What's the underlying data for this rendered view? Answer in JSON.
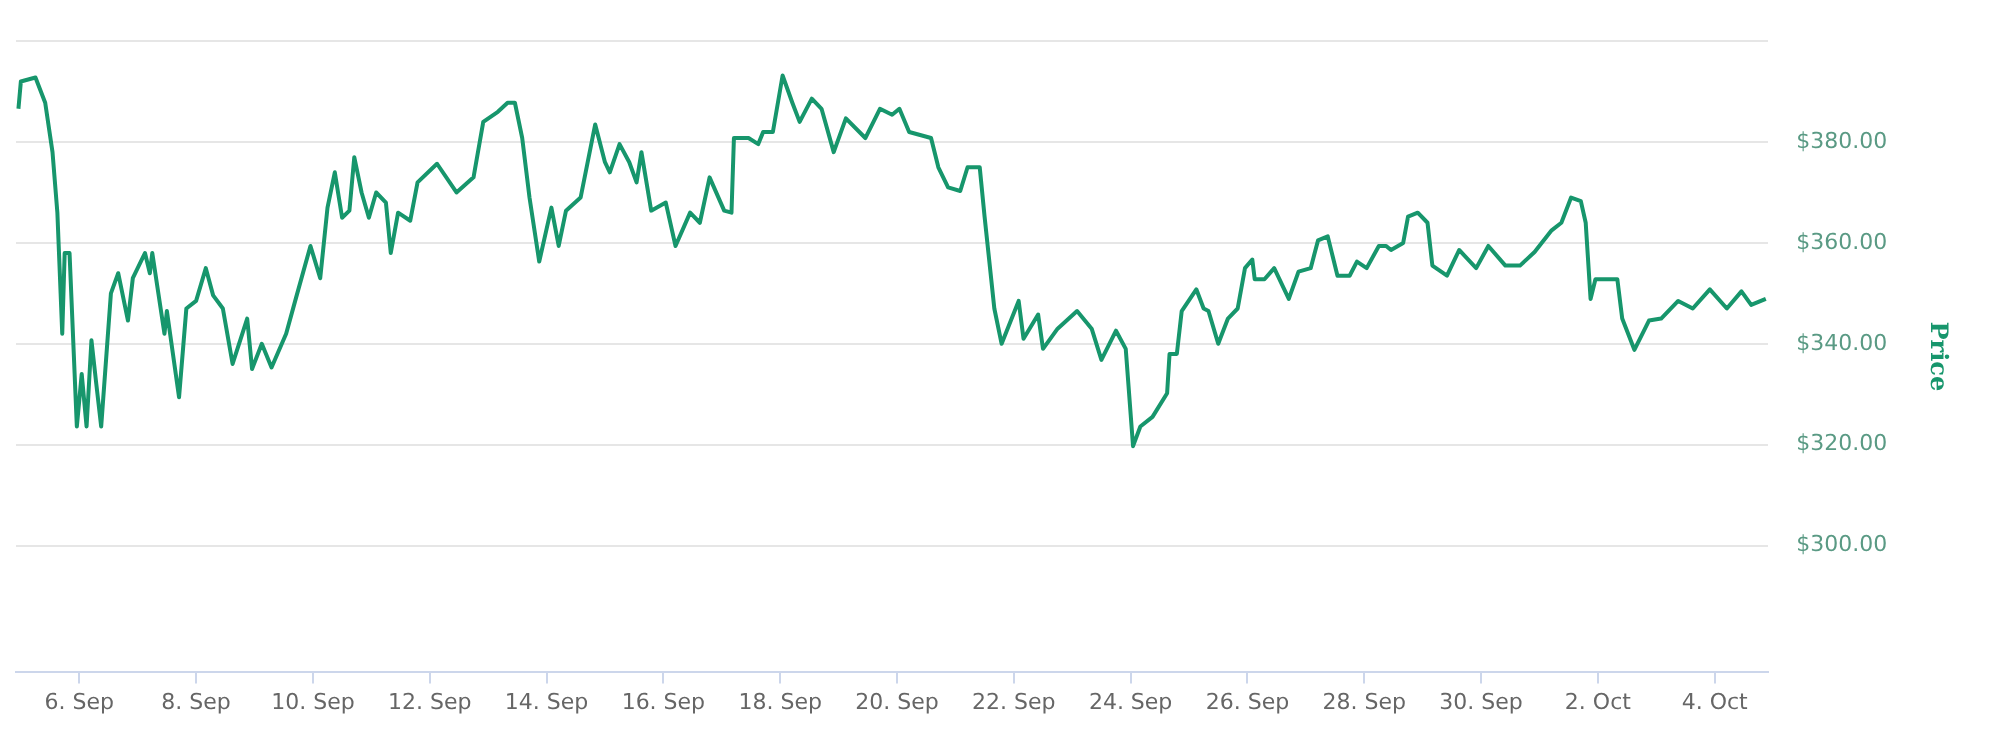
{
  "chart_data": {
    "type": "line",
    "ylabel": "Price",
    "grid": "y",
    "marker": "none",
    "line_style": "solid",
    "xlim": [
      "--09-04T22:00",
      "--10-04T22:00"
    ],
    "xticks": [
      {
        "value": "--09-06",
        "label": "6. Sep"
      },
      {
        "value": "--09-08",
        "label": "8. Sep"
      },
      {
        "value": "--09-10",
        "label": "10. Sep"
      },
      {
        "value": "--09-12",
        "label": "12. Sep"
      },
      {
        "value": "--09-14",
        "label": "14. Sep"
      },
      {
        "value": "--09-16",
        "label": "16. Sep"
      },
      {
        "value": "--09-18",
        "label": "18. Sep"
      },
      {
        "value": "--09-20",
        "label": "20. Sep"
      },
      {
        "value": "--09-22",
        "label": "22. Sep"
      },
      {
        "value": "--09-24",
        "label": "24. Sep"
      },
      {
        "value": "--09-26",
        "label": "26. Sep"
      },
      {
        "value": "--09-28",
        "label": "28. Sep"
      },
      {
        "value": "--09-30",
        "label": "30. Sep"
      },
      {
        "value": "--10-02",
        "label": "2. Oct"
      },
      {
        "value": "--10-04",
        "label": "4. Oct"
      }
    ],
    "ylim": [
      275,
      400
    ],
    "yticks": [
      {
        "value": 300,
        "label": "$300.00"
      },
      {
        "value": 320,
        "label": "$320.00"
      },
      {
        "value": 340,
        "label": "$340.00"
      },
      {
        "value": 360,
        "label": "$360.00"
      },
      {
        "value": 380,
        "label": "$380.00"
      },
      {
        "value": 400,
        "label": null
      }
    ],
    "x": [
      "--09-04T23:00",
      "--09-05T00:00",
      "--09-05T06:00",
      "--09-05T10:00",
      "--09-05T13:00",
      "--09-05T15:00",
      "--09-05T17:00",
      "--09-05T18:00",
      "--09-05T20:00",
      "--09-05T23:00",
      "--09-06T01:00",
      "--09-06T03:00",
      "--09-06T05:00",
      "--09-06T07:00",
      "--09-06T09:00",
      "--09-06T13:00",
      "--09-06T16:00",
      "--09-06T20:00",
      "--09-06T22:00",
      "--09-07T03:00",
      "--09-07T05:00",
      "--09-07T06:00",
      "--09-07T11:00",
      "--09-07T12:00",
      "--09-07T17:00",
      "--09-07T20:00",
      "--09-08T00:00",
      "--09-08T04:00",
      "--09-08T07:00",
      "--09-08T11:00",
      "--09-08T15:00",
      "--09-08T21:00",
      "--09-08T23:00",
      "--09-09T03:00",
      "--09-09T07:00",
      "--09-09T13:00",
      "--09-09T17:00",
      "--09-09T23:00",
      "--09-10T03:00",
      "--09-10T06:00",
      "--09-10T09:00",
      "--09-10T12:00",
      "--09-10T15:00",
      "--09-10T17:00",
      "--09-10T20:00",
      "--09-10T23:00",
      "--09-11T02:00",
      "--09-11T06:00",
      "--09-11T08:00",
      "--09-11T11:00",
      "--09-11T16:00",
      "--09-11T19:00",
      "--09-12T03:00",
      "--09-12T11:00",
      "--09-12T18:00",
      "--09-12T22:00",
      "--09-13T04:00",
      "--09-13T08:00",
      "--09-13T11:00",
      "--09-13T14:00",
      "--09-13T17:00",
      "--09-13T21:00",
      "--09-14T02:00",
      "--09-14T05:00",
      "--09-14T08:00",
      "--09-14T14:00",
      "--09-14T20:00",
      "--09-15T00:00",
      "--09-15T02:00",
      "--09-15T06:00",
      "--09-15T10:00",
      "--09-15T13:00",
      "--09-15T15:00",
      "--09-15T19:00",
      "--09-16T01:00",
      "--09-16T05:00",
      "--09-16T11:00",
      "--09-16T15:00",
      "--09-16T19:00",
      "--09-17T01:00",
      "--09-17T04:00",
      "--09-17T05:00",
      "--09-17T11:00",
      "--09-17T15:00",
      "--09-17T17:00",
      "--09-17T21:00",
      "--09-18T01:00",
      "--09-18T05:00",
      "--09-18T08:00",
      "--09-18T13:00",
      "--09-18T17:00",
      "--09-18T22:00",
      "--09-19T03:00",
      "--09-19T11:00",
      "--09-19T17:00",
      "--09-19T22:00",
      "--09-20T01:00",
      "--09-20T05:00",
      "--09-20T14:00",
      "--09-20T17:00",
      "--09-20T21:00",
      "--09-21T02:00",
      "--09-21T05:00",
      "--09-21T10:00",
      "--09-21T12:00",
      "--09-21T16:00",
      "--09-21T19:00",
      "--09-22T02:00",
      "--09-22T04:00",
      "--09-22T10:00",
      "--09-22T12:00",
      "--09-22T18:00",
      "--09-23T02:00",
      "--09-23T08:00",
      "--09-23T12:00",
      "--09-23T18:00",
      "--09-23T22:00",
      "--09-24T01:00",
      "--09-24T04:00",
      "--09-24T09:00",
      "--09-24T15:00",
      "--09-24T16:00",
      "--09-24T19:00",
      "--09-24T21:00",
      "--09-25T03:00",
      "--09-25T06:00",
      "--09-25T08:00",
      "--09-25T12:00",
      "--09-25T16:00",
      "--09-25T20:00",
      "--09-25T23:00",
      "--09-26T02:00",
      "--09-26T03:00",
      "--09-26T07:00",
      "--09-26T11:00",
      "--09-26T17:00",
      "--09-26T21:00",
      "--09-27T02:00",
      "--09-27T05:00",
      "--09-27T09:00",
      "--09-27T13:00",
      "--09-27T18:00",
      "--09-27T21:00",
      "--09-28T01:00",
      "--09-28T06:00",
      "--09-28T09:00",
      "--09-28T11:00",
      "--09-28T16:00",
      "--09-28T18:00",
      "--09-28T22:00",
      "--09-29T02:00",
      "--09-29T04:00",
      "--09-29T10:00",
      "--09-29T15:00",
      "--09-29T22:00",
      "--09-30T03:00",
      "--09-30T10:00",
      "--09-30T16:00",
      "--09-30T22:00",
      "--10-01T05:00",
      "--10-01T09:00",
      "--10-01T13:00",
      "--10-01T17:00",
      "--10-01T19:00",
      "--10-01T21:00",
      "--10-01T23:00",
      "--10-02T08:00",
      "--10-02T10:00",
      "--10-02T15:00",
      "--10-02T21:00",
      "--10-03T02:00",
      "--10-03T09:00",
      "--10-03T15:00",
      "--10-03T22:00",
      "--10-04T05:00",
      "--10-04T11:00",
      "--10-04T15:00",
      "--10-04T21:00"
    ],
    "series": [
      {
        "color": "#17966c",
        "values": [
          386.6,
          392,
          392.8,
          387.8,
          378,
          366,
          342,
          358,
          358,
          323.6,
          334,
          323.6,
          340.7,
          332,
          323.6,
          350,
          354,
          344.6,
          353,
          358,
          354,
          358,
          342,
          346.5,
          329.4,
          347,
          348.5,
          355,
          349.6,
          347,
          336,
          345,
          335,
          340,
          335.3,
          342,
          349,
          359.4,
          353,
          367,
          374,
          365,
          366.4,
          377,
          370,
          365,
          370,
          368,
          358,
          366,
          364.4,
          372,
          375.7,
          370,
          373,
          384,
          386,
          387.8,
          387.8,
          380.8,
          369,
          356.3,
          367,
          359.4,
          366.4,
          369,
          383.5,
          376,
          374,
          379.6,
          376,
          372,
          378,
          366.4,
          368,
          359.4,
          366,
          364,
          373,
          366.4,
          366,
          380.8,
          380.8,
          379.6,
          382,
          382,
          393.2,
          387.8,
          384,
          388.6,
          386.6,
          378,
          384.7,
          380.8,
          386.6,
          385.4,
          386.6,
          382,
          380.8,
          375,
          371,
          370.3,
          375,
          375,
          365.2,
          347,
          340,
          348.5,
          341,
          345.8,
          339,
          343,
          346.5,
          343,
          336.8,
          342.6,
          339,
          319.7,
          323.6,
          325.5,
          330.2,
          338,
          338,
          346.5,
          350.8,
          347,
          346.5,
          340,
          345,
          347,
          355,
          356.7,
          352.8,
          352.8,
          355,
          348.9,
          354.3,
          355,
          360.5,
          361.3,
          353.5,
          353.5,
          356.3,
          355,
          359.4,
          359.4,
          358.6,
          360,
          365.2,
          366,
          364,
          355.5,
          353.5,
          358.6,
          355,
          359.4,
          355.5,
          355.5,
          358.2,
          362.5,
          364,
          369,
          368.3,
          364,
          348.9,
          352.8,
          352.8,
          345,
          338.8,
          344.6,
          345,
          348.5,
          347,
          350.8,
          347,
          350.4,
          347.7,
          348.9
        ]
      }
    ]
  }
}
